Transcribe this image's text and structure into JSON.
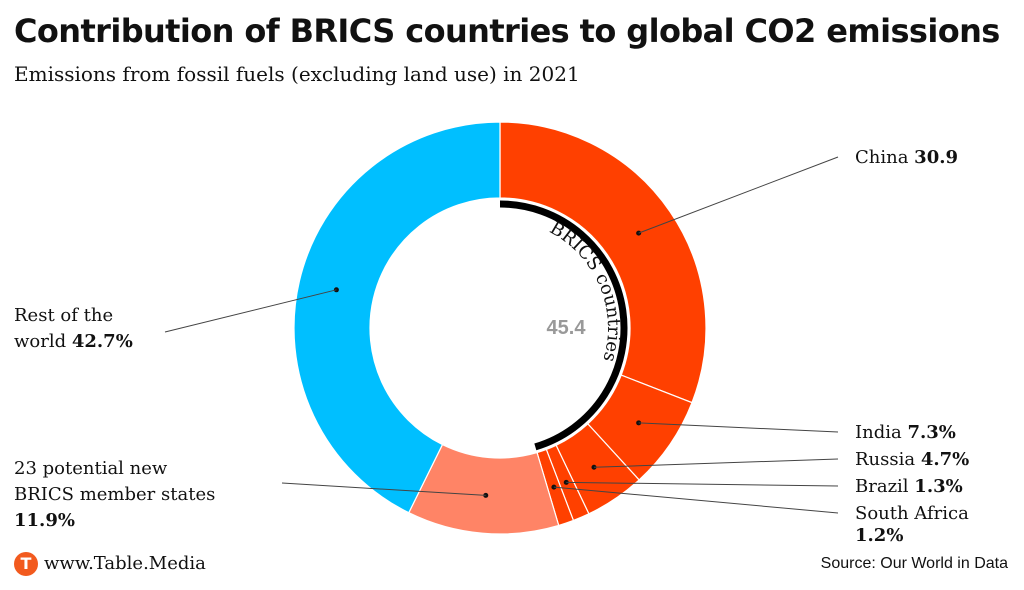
{
  "title": "Contribution of BRICS countries to global CO2 emissions",
  "subtitle": "Emissions from fossil fuels (excluding land use) in 2021",
  "footer": {
    "logo_letter": "T",
    "site": "www.Table.Media",
    "source": "Source: Our World in Data"
  },
  "chart_data": {
    "type": "pie",
    "variant": "donut",
    "unit": "%",
    "slices": [
      {
        "name": "China",
        "value": 30.9,
        "label_value": "30.9",
        "color": "#ff4000"
      },
      {
        "name": "India",
        "value": 7.3,
        "label_value": "7.3%",
        "color": "#ff4000"
      },
      {
        "name": "Russia",
        "value": 4.7,
        "label_value": "4.7%",
        "color": "#ff4000"
      },
      {
        "name": "Brazil",
        "value": 1.3,
        "label_value": "1.3%",
        "color": "#ff4000"
      },
      {
        "name": "South Africa",
        "value": 1.2,
        "label_value": "1.2%",
        "color": "#ff4000"
      },
      {
        "name": "23 potential new BRICS member states",
        "value": 11.9,
        "label_value": "11.9%",
        "color": "#ff8466"
      },
      {
        "name": "Rest of the world",
        "value": 42.7,
        "label_value": "42.7%",
        "color": "#00bfff"
      }
    ],
    "group_annotation": {
      "label": "BRICS countries",
      "value": "45.4",
      "value_color": "#999999"
    },
    "legend": "none"
  }
}
